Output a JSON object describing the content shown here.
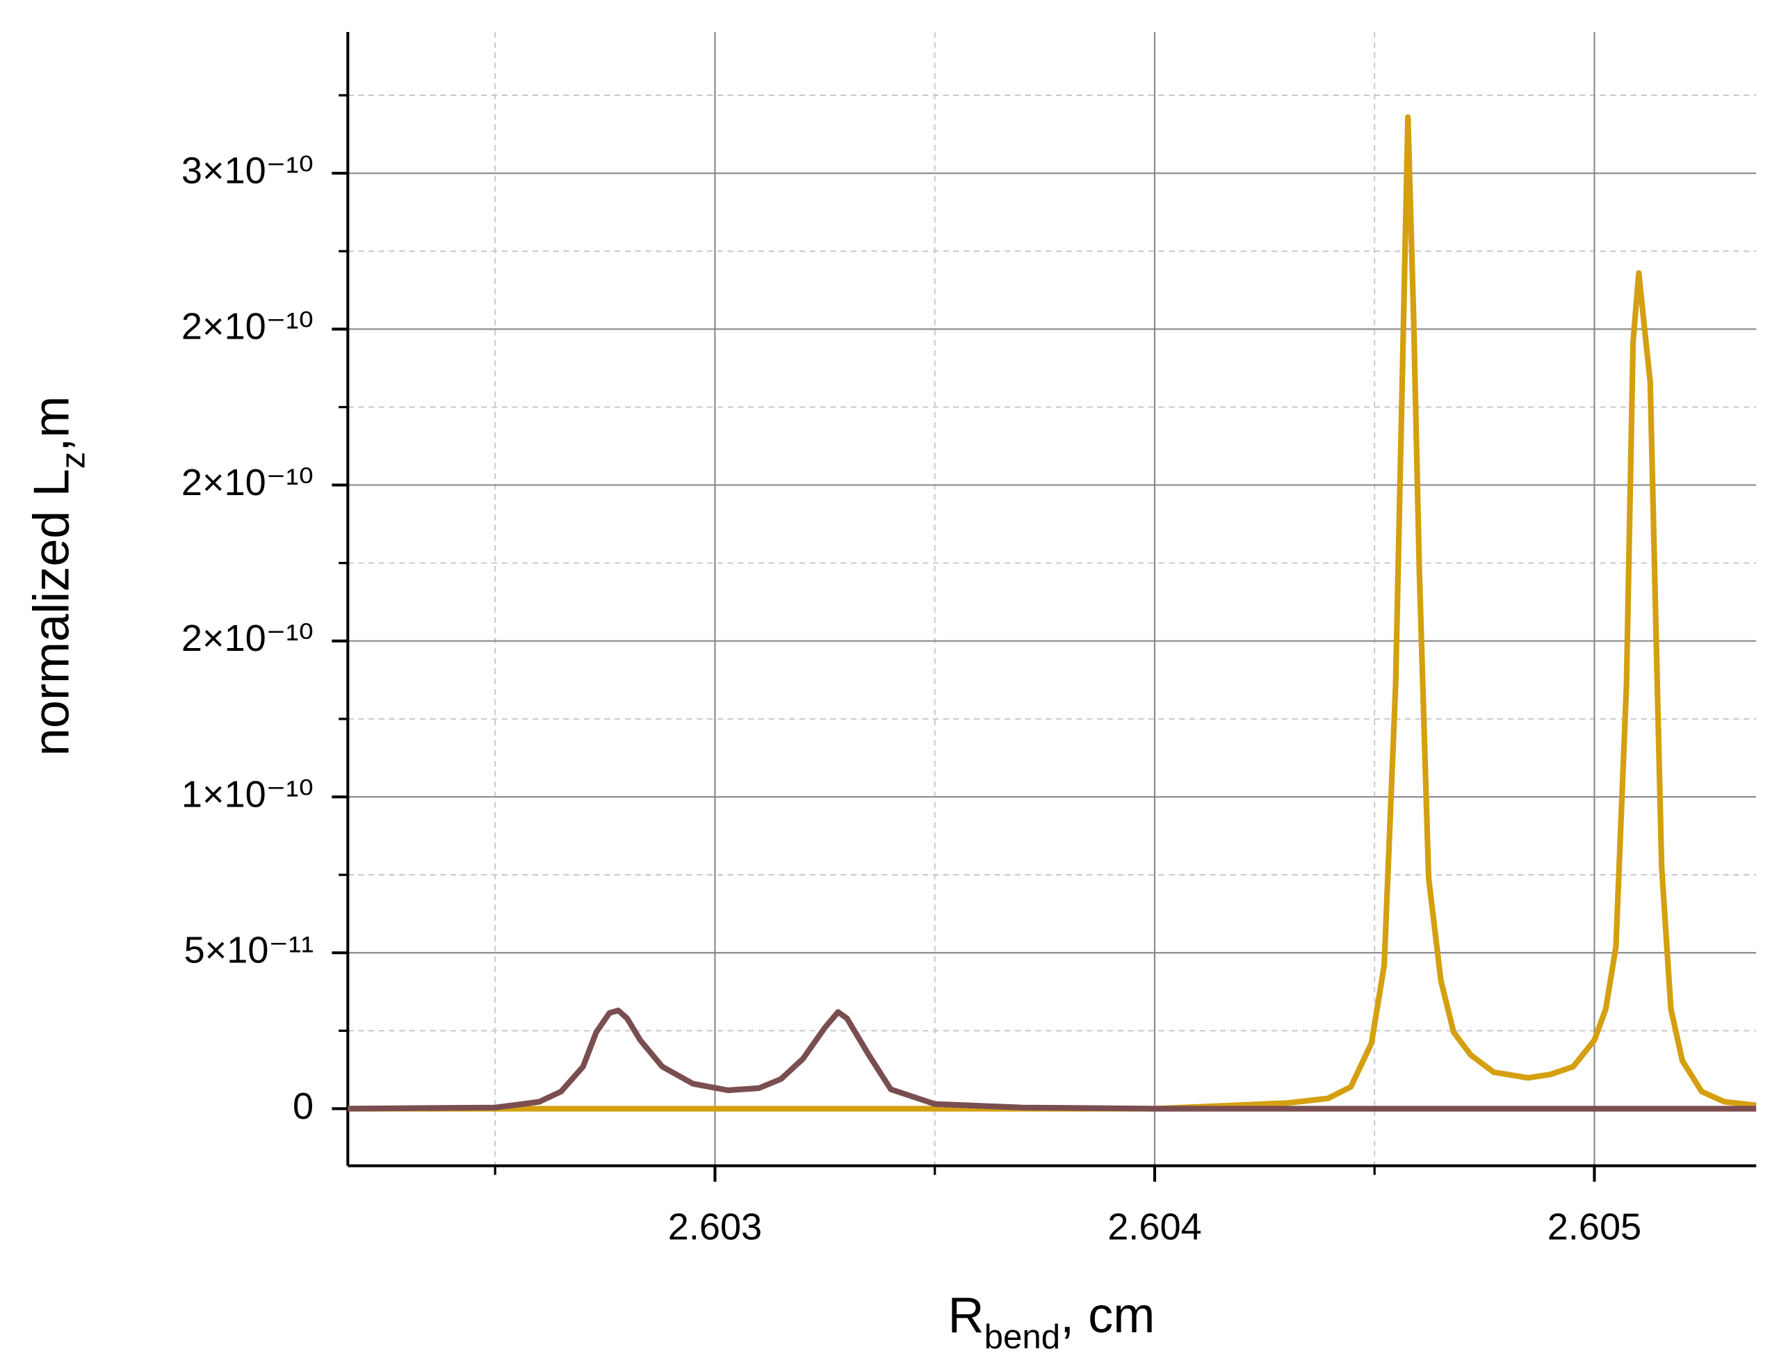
{
  "chart_data": {
    "type": "line",
    "x_label": [
      "R",
      "bend",
      ", cm"
    ],
    "y_label": [
      "normalized L",
      "z",
      ",m"
    ],
    "xlim": [
      2.602165,
      2.605368
    ],
    "ylim": [
      -1.83e-11,
      3.453e-10
    ],
    "xticks": [
      2.603,
      2.604,
      2.605
    ],
    "xminor": [
      2.6025,
      2.6035,
      2.6045
    ],
    "yticks": [
      0,
      {
        "value": 5e-11,
        "label": "5×10⁻¹¹"
      },
      {
        "value": 1e-10,
        "label": "1×10⁻¹⁰"
      },
      {
        "value": 1.5e-10,
        "label": "2×10⁻¹⁰"
      },
      {
        "value": 2e-10,
        "label": "2×10⁻¹⁰"
      },
      {
        "value": 2.5e-10,
        "label": "2×10⁻¹⁰"
      },
      {
        "value": 3e-10,
        "label": "3×10⁻¹⁰"
      }
    ],
    "yminor": [
      2.5e-11,
      7.5e-11,
      1.25e-10,
      1.75e-10,
      2.25e-10,
      2.75e-10,
      3.25e-10
    ],
    "grid": true,
    "series": [
      {
        "color": "#d4a010",
        "x": [
          2.602165,
          2.604,
          2.6043,
          2.604394,
          2.604446,
          2.604493,
          2.604522,
          2.604548,
          2.604566,
          2.604576,
          2.604589,
          2.604602,
          2.604623,
          2.604651,
          2.60468,
          2.604719,
          2.604771,
          2.604849,
          2.6049,
          2.604952,
          2.605,
          2.605026,
          2.605049,
          2.605073,
          2.605088,
          2.605101,
          2.605112,
          2.605127,
          2.60514,
          2.605153,
          2.605174,
          2.6052,
          2.605244,
          2.605296,
          2.605368
        ],
        "values": [
          0,
          0,
          1.8e-12,
          3.3e-12,
          7e-12,
          2.1e-11,
          4.6e-11,
          1.36e-10,
          2.53e-10,
          3.18e-10,
          2.53e-10,
          1.72e-10,
          7.4e-11,
          4.1e-11,
          2.45e-11,
          1.72e-11,
          1.17e-11,
          9.9e-12,
          1.1e-11,
          1.35e-11,
          2.2e-11,
          3.2e-11,
          5.2e-11,
          1.36e-10,
          2.46e-10,
          2.68e-10,
          2.53e-10,
          2.33e-10,
          1.54e-10,
          7.75e-11,
          3.2e-11,
          1.54e-11,
          5.5e-12,
          2.2e-12,
          1.1e-12
        ]
      },
      {
        "color": "#7a4e50",
        "x": [
          2.602165,
          2.6025,
          2.6026,
          2.60265,
          2.6027,
          2.60273,
          2.60276,
          2.60278,
          2.6028,
          2.60283,
          2.60288,
          2.60295,
          2.60303,
          2.6031,
          2.60315,
          2.6032,
          2.60325,
          2.60328,
          2.6033,
          2.60335,
          2.6034,
          2.6035,
          2.6037,
          2.604,
          2.605368
        ],
        "values": [
          0,
          3.7e-13,
          2.2e-12,
          5.5e-12,
          1.35e-11,
          2.45e-11,
          3.07e-11,
          3.15e-11,
          2.9e-11,
          2.2e-11,
          1.35e-11,
          8e-12,
          5.9e-12,
          6.6e-12,
          9.5e-12,
          1.6e-11,
          2.6e-11,
          3.1e-11,
          2.9e-11,
          1.72e-11,
          6.2e-12,
          1.5e-12,
          3.7e-13,
          0,
          0
        ]
      }
    ]
  }
}
